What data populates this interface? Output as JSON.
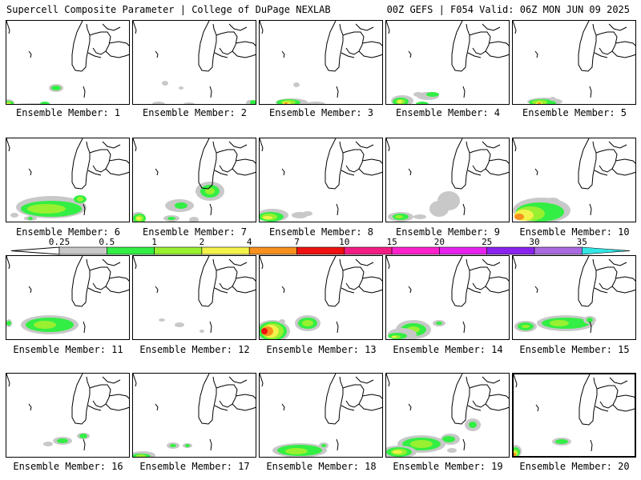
{
  "header": {
    "left": "Supercell Composite Parameter | College of DuPage NEXLAB",
    "right": "00Z GEFS | F054 Valid: 06Z MON JUN 09 2025"
  },
  "colors": {
    "c0": "#c8c8c8",
    "c1": "#33ee44",
    "c2": "#99f030",
    "c3": "#f2f24a",
    "c4": "#f7901e",
    "c5": "#ee1111",
    "c6": "#f21d84",
    "c7": "#ff22cc",
    "c8": "#e822ee",
    "c9": "#8a22ee",
    "c10": "#aa6ae0",
    "c11": "#33e6e6"
  },
  "colorbar": {
    "labels": [
      "0.25",
      "0.5",
      "1",
      "2",
      "4",
      "7",
      "10",
      "15",
      "20",
      "25",
      "30",
      "35"
    ],
    "bins": [
      "c0",
      "c1",
      "c2",
      "c3",
      "c4",
      "c5",
      "c6",
      "c7",
      "c8",
      "c9",
      "c10",
      "c11"
    ]
  },
  "members": [
    {
      "label": "Ensemble Member: 1"
    },
    {
      "label": "Ensemble Member: 2"
    },
    {
      "label": "Ensemble Member: 3"
    },
    {
      "label": "Ensemble Member: 4"
    },
    {
      "label": "Ensemble Member: 5"
    },
    {
      "label": "Ensemble Member: 6"
    },
    {
      "label": "Ensemble Member: 7"
    },
    {
      "label": "Ensemble Member: 8"
    },
    {
      "label": "Ensemble Member: 9"
    },
    {
      "label": "Ensemble Member: 10"
    },
    {
      "label": "Ensemble Member: 11"
    },
    {
      "label": "Ensemble Member: 12"
    },
    {
      "label": "Ensemble Member: 13"
    },
    {
      "label": "Ensemble Member: 14"
    },
    {
      "label": "Ensemble Member: 15"
    },
    {
      "label": "Ensemble Member: 16"
    },
    {
      "label": "Ensemble Member: 17"
    },
    {
      "label": "Ensemble Member: 18"
    },
    {
      "label": "Ensemble Member: 19"
    },
    {
      "label": "Ensemble Member: 20",
      "selected": true
    }
  ]
}
